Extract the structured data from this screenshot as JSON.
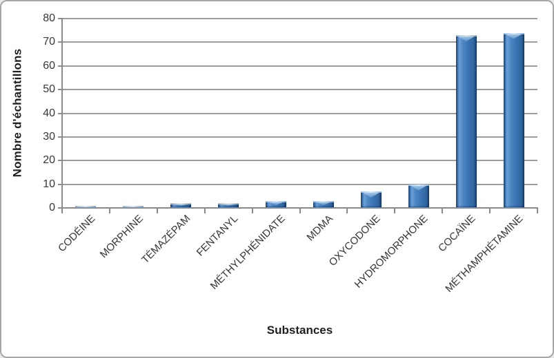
{
  "chart_data": {
    "type": "bar",
    "categories": [
      "CODÉINE",
      "MORPHINE",
      "TÉMAZÉPAM",
      "FENTANYL",
      "MÉTHYLPHÉNIDATE",
      "MDMA",
      "OXYCODONE",
      "HYDROMORPHONE",
      "COCAÏNE",
      "MÉTHAMPHÉTAMINE"
    ],
    "values": [
      1,
      1,
      2,
      2,
      3,
      3,
      7,
      10,
      73,
      74
    ],
    "title": "",
    "xlabel": "Substances",
    "ylabel": "Nombre d'échantillons",
    "ylim": [
      0,
      80
    ],
    "ytick_step": 10,
    "grid": true,
    "legend_position": "none",
    "bar_color": "#3b74b4",
    "bar_edge_dark": "#173a66",
    "bar_highlight": "#bcd8f4",
    "gridline_color": "#9b9b9b",
    "axis_color": "#8a8a8a",
    "tick_label_color": "#363636",
    "title_color": "#1f1f1f",
    "frame_border_color": "#a6a6a6",
    "background_color": "#ffffff"
  }
}
